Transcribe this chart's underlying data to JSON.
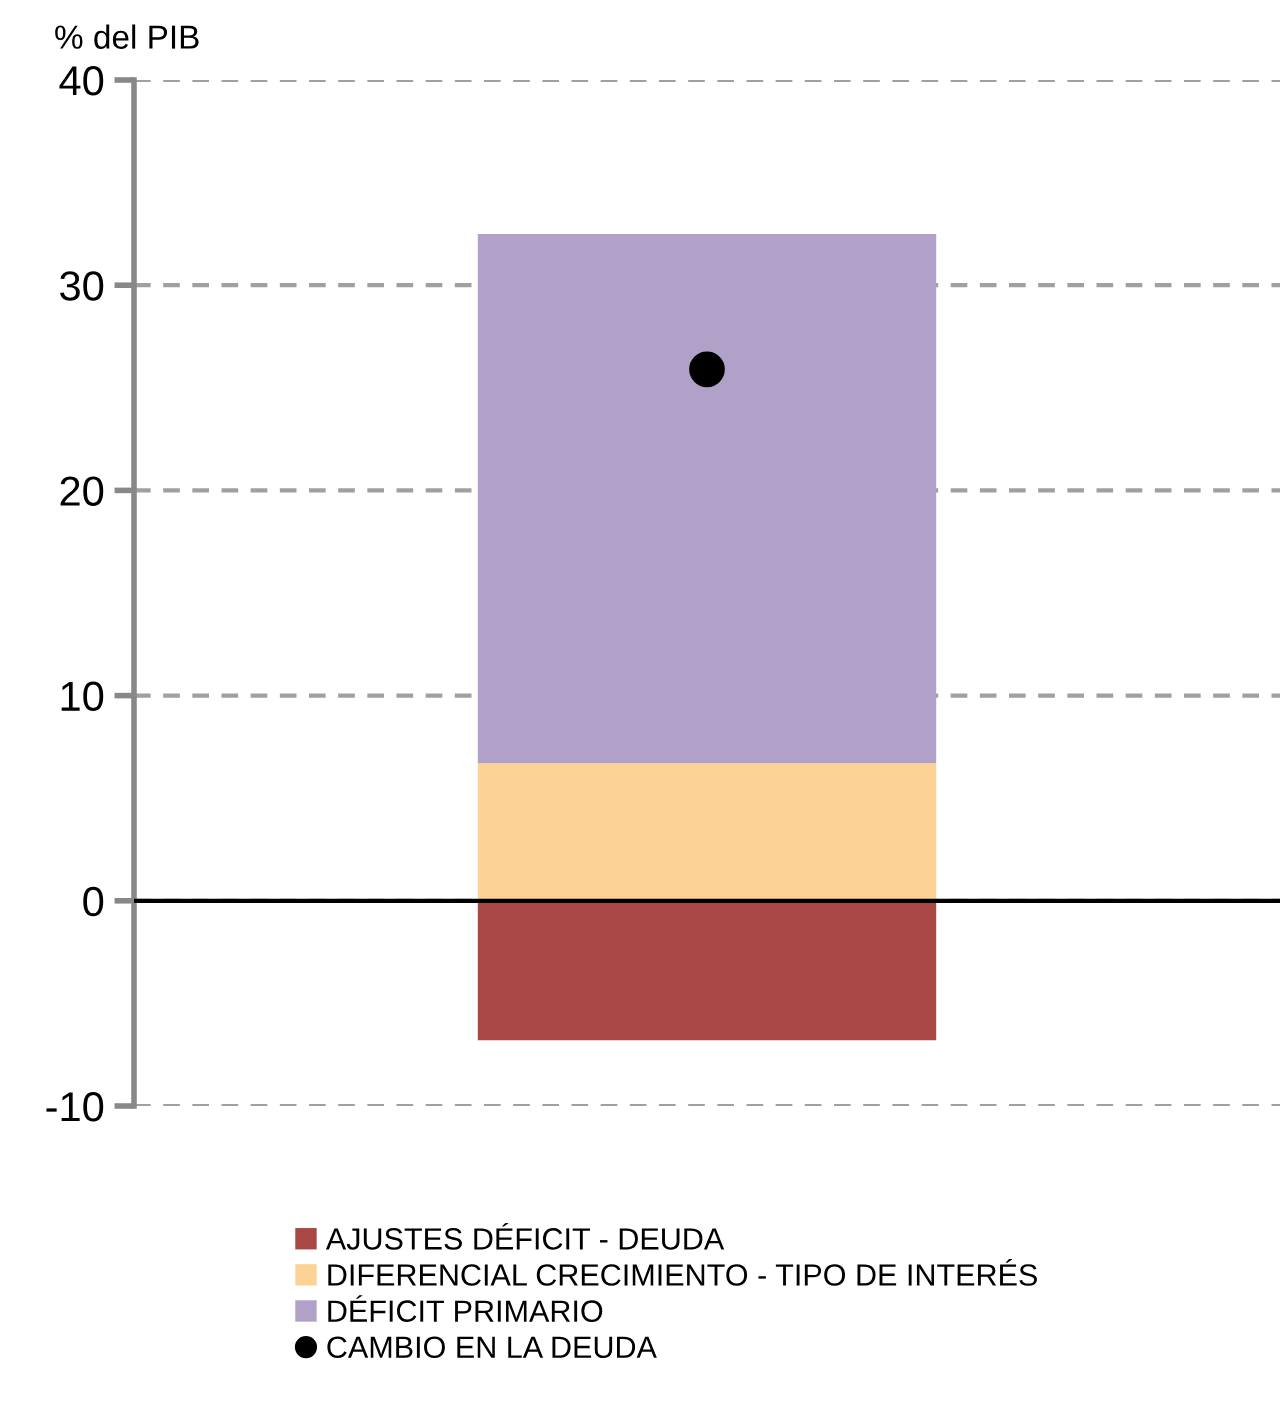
{
  "chart_data": {
    "type": "bar",
    "stacked": true,
    "ylabel": "% del PIB",
    "categories": [
      null
    ],
    "series": [
      {
        "name": "AJUSTES DÉFICIT - DEUDA",
        "color": "#a94744",
        "values": [
          -6.8
        ]
      },
      {
        "name": "DIFERENCIAL CRECIMIENTO - TIPO DE INTERÉS",
        "color": "#fdd395",
        "values": [
          6.7
        ]
      },
      {
        "name": "DÉFICIT PRIMARIO",
        "color": "#b1a0c7",
        "values": [
          25.8
        ]
      },
      {
        "name": "CAMBIO EN LA DEUDA",
        "type": "scatter",
        "color": "#000000",
        "values": [
          25.9
        ],
        "marker": "circle"
      }
    ],
    "ylim": [
      -10,
      40
    ],
    "yticks": [
      -10,
      0,
      10,
      20,
      30,
      40
    ],
    "grid": "y",
    "legend": "bottom"
  }
}
